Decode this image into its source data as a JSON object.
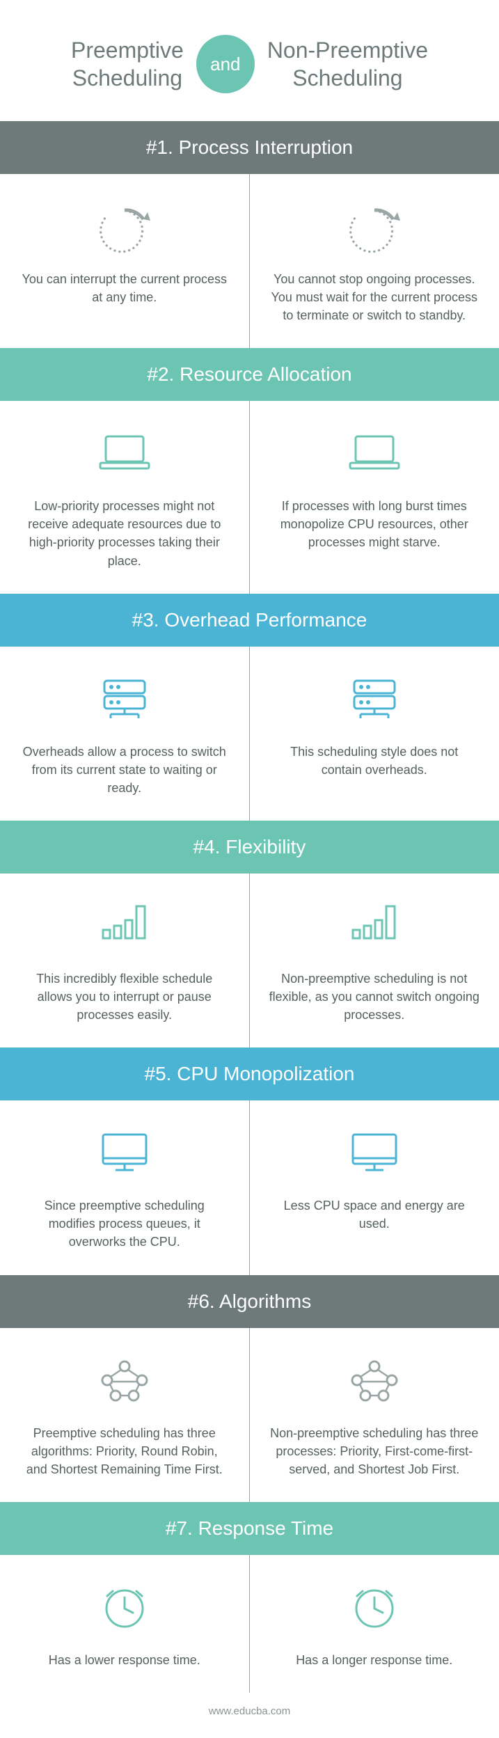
{
  "header": {
    "left_title": "Preemptive\nScheduling",
    "and_label": "and",
    "right_title": "Non-Preemptive\nScheduling"
  },
  "colors": {
    "gray": "#6e7a7a",
    "green": "#6cc5b3",
    "blue": "#4bb4d4",
    "text": "#55605f",
    "icon": "#6cc5b3",
    "icon_blue": "#4bb4d4"
  },
  "sections": [
    {
      "title": "#1. Process Interruption",
      "bg": "gray",
      "icon": "cycle",
      "left": "You can interrupt the current process at any time.",
      "right": "You cannot stop ongoing processes. You must wait for the current process to terminate or switch to standby."
    },
    {
      "title": "#2. Resource Allocation",
      "bg": "green",
      "icon": "laptop",
      "left": "Low-priority processes might not receive adequate resources due to high-priority processes taking their place.",
      "right": "If processes with long burst times monopolize CPU resources, other processes might starve."
    },
    {
      "title": "#3. Overhead Performance",
      "bg": "blue",
      "icon": "server",
      "left": "Overheads allow a process to switch from its current state to waiting or ready.",
      "right": "This scheduling style does not contain overheads."
    },
    {
      "title": "#4. Flexibility",
      "bg": "green",
      "icon": "bars",
      "left": "This incredibly flexible schedule allows you to interrupt or pause processes easily.",
      "right": "Non-preemptive scheduling is not flexible, as you cannot switch ongoing processes."
    },
    {
      "title": "#5. CPU Monopolization",
      "bg": "blue",
      "icon": "monitor",
      "left": "Since preemptive scheduling modifies process queues, it overworks the CPU.",
      "right": "Less CPU space and energy are used."
    },
    {
      "title": "#6. Algorithms",
      "bg": "gray",
      "icon": "network",
      "left": "Preemptive scheduling has three algorithms: Priority, Round Robin, and Shortest Remaining Time First.",
      "right": "Non-preemptive scheduling has three processes: Priority, First-come-first-served, and Shortest Job First."
    },
    {
      "title": "#7. Response Time",
      "bg": "green",
      "icon": "clock",
      "left": "Has a lower response time.",
      "right": "Has a longer response time."
    }
  ],
  "footer": "www.educba.com"
}
